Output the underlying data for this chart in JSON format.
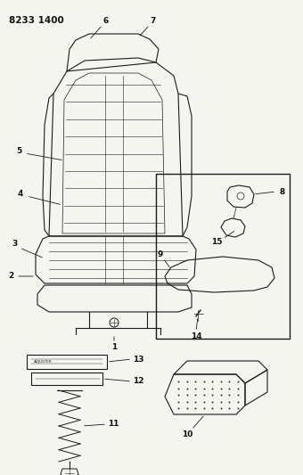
{
  "title": "8233 1400",
  "bg_color": "#f5f5f0",
  "line_color": "#1a1a1a",
  "label_color": "#111111",
  "figsize": [
    3.4,
    5.33
  ],
  "dpi": 100
}
